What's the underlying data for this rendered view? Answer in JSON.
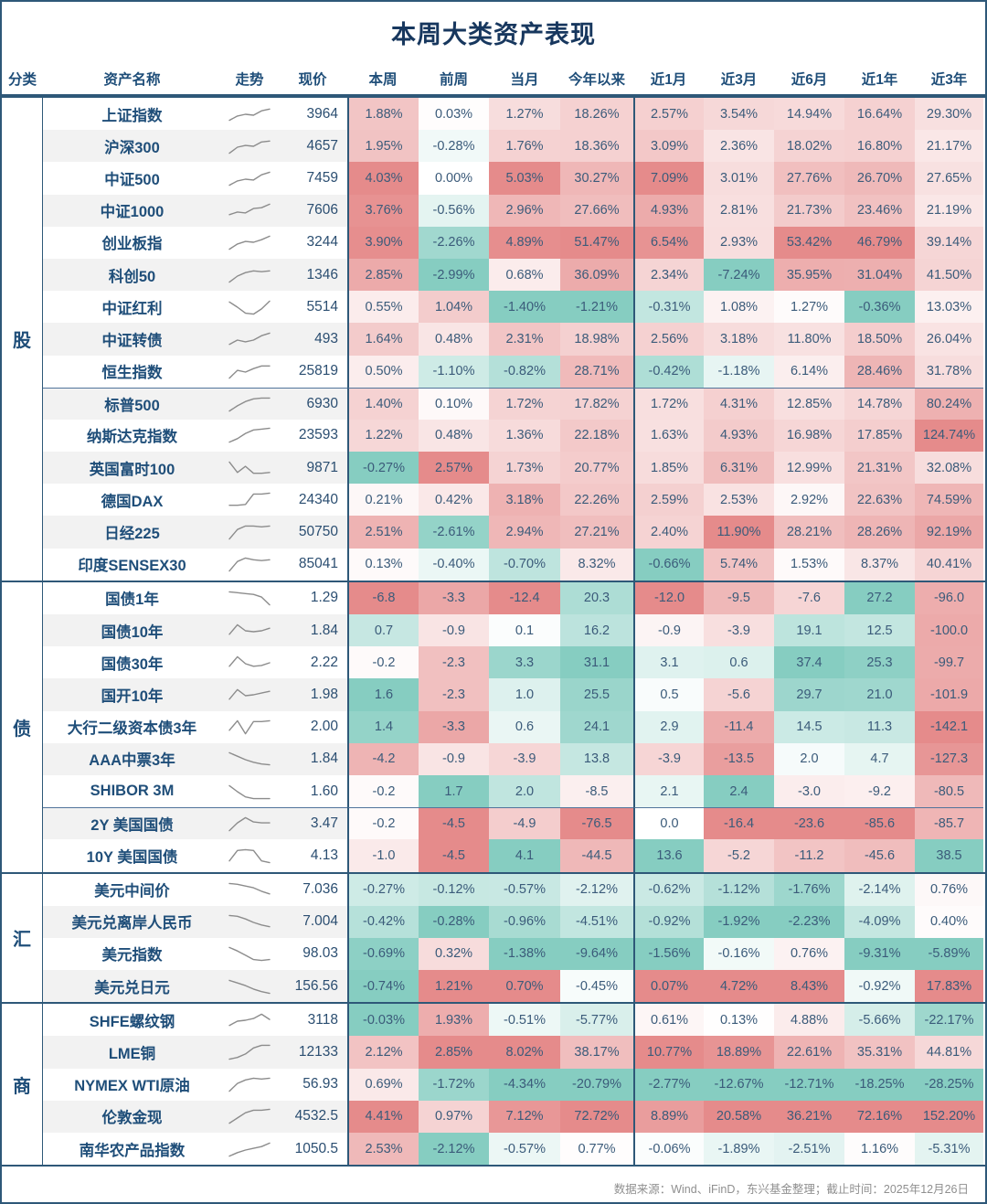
{
  "title": "本周大类资产表现",
  "source_note": "数据来源：Wind、iFinD，东兴基金整理；截止时间：2025年12月26日",
  "palette": {
    "up_red": "#E58B8B",
    "down_teal": "#86CDC1",
    "header_text": "#1F4E79",
    "value_text": "#3B5B7A",
    "border_dark": "#2E5878",
    "border_sub": "#51749B",
    "stripe": "#F2F2F2",
    "spark": "#8C8C8C",
    "title_text": "#17375E",
    "footer_text": "#8F8F8F"
  },
  "chart_data": {
    "type": "heatmap",
    "columns": [
      "分类",
      "资产名称",
      "走势",
      "现价",
      "本周",
      "前周",
      "当月",
      "今年以来",
      "近1月",
      "近3月",
      "近6月",
      "近1年",
      "近3年"
    ],
    "sections": [
      {
        "category": "股",
        "unit": "%",
        "invert_colors": false,
        "break_before": [
          9
        ],
        "rows": [
          {
            "name": "上证指数",
            "price": "3964",
            "spark": [
              1.5,
              4,
              5,
              4.5,
              7,
              8
            ],
            "values": [
              1.88,
              0.03,
              1.27,
              18.26,
              2.57,
              3.54,
              14.94,
              16.64,
              29.3
            ]
          },
          {
            "name": "沪深300",
            "price": "4657",
            "spark": [
              1,
              4.5,
              5.5,
              5,
              7.5,
              8
            ],
            "values": [
              1.95,
              -0.28,
              1.76,
              18.36,
              3.09,
              2.36,
              18.02,
              16.8,
              21.17
            ]
          },
          {
            "name": "中证500",
            "price": "7459",
            "spark": [
              1,
              3.5,
              4.5,
              4,
              7,
              8.5
            ],
            "values": [
              4.03,
              0.0,
              5.03,
              30.27,
              7.09,
              3.01,
              27.76,
              26.7,
              27.65
            ]
          },
          {
            "name": "中证1000",
            "price": "7606",
            "spark": [
              2.5,
              4,
              3.5,
              6,
              6.5,
              8.5
            ],
            "values": [
              3.76,
              -0.56,
              2.96,
              27.66,
              4.93,
              2.81,
              21.73,
              23.46,
              21.19
            ]
          },
          {
            "name": "创业板指",
            "price": "3244",
            "spark": [
              1,
              4,
              5.5,
              5,
              6.5,
              8.5
            ],
            "values": [
              3.9,
              -2.26,
              4.89,
              51.47,
              6.54,
              2.93,
              53.42,
              46.79,
              39.14
            ]
          },
          {
            "name": "科创50",
            "price": "1346",
            "spark": [
              1,
              4.5,
              6.5,
              7.5,
              7,
              7.5
            ],
            "values": [
              2.85,
              -2.99,
              0.68,
              36.09,
              2.34,
              -7.24,
              35.95,
              31.04,
              41.5
            ]
          },
          {
            "name": "中证红利",
            "price": "5514",
            "spark": [
              8,
              5,
              1.5,
              1,
              4,
              8.5
            ],
            "values": [
              0.55,
              1.04,
              -1.4,
              -1.21,
              -0.31,
              1.08,
              1.27,
              -0.36,
              13.03
            ]
          },
          {
            "name": "中证转债",
            "price": "493",
            "spark": [
              2,
              4.5,
              3.5,
              4.5,
              7,
              8.5
            ],
            "values": [
              1.64,
              0.48,
              2.31,
              18.98,
              2.56,
              3.18,
              11.8,
              18.5,
              26.04
            ]
          },
          {
            "name": "恒生指数",
            "price": "25819",
            "spark": [
              1,
              5.5,
              4.5,
              6.5,
              8,
              8
            ],
            "values": [
              0.5,
              -1.1,
              -0.82,
              28.71,
              -0.42,
              -1.18,
              6.14,
              28.46,
              31.78
            ]
          },
          {
            "name": "标普500",
            "price": "6930",
            "spark": [
              1,
              4,
              6.5,
              8,
              8.5,
              8.5
            ],
            "values": [
              1.4,
              0.1,
              1.72,
              17.82,
              1.72,
              4.31,
              12.85,
              14.78,
              80.24
            ]
          },
          {
            "name": "纳斯达克指数",
            "price": "23593",
            "spark": [
              1,
              3,
              6,
              8,
              8.5,
              9
            ],
            "values": [
              1.22,
              0.48,
              1.36,
              22.18,
              1.63,
              4.93,
              16.98,
              17.85,
              124.74
            ]
          },
          {
            "name": "英国富时100",
            "price": "9871",
            "spark": [
              8.5,
              2.5,
              6,
              2,
              2,
              2.5
            ],
            "values": [
              -0.27,
              2.57,
              1.73,
              20.77,
              1.85,
              6.31,
              12.99,
              21.31,
              32.08
            ]
          },
          {
            "name": "德国DAX",
            "price": "24340",
            "spark": [
              2,
              2,
              2.5,
              8.5,
              8.5,
              9
            ],
            "values": [
              0.21,
              0.42,
              3.18,
              22.26,
              2.59,
              2.53,
              2.92,
              22.63,
              74.59
            ]
          },
          {
            "name": "日经225",
            "price": "50750",
            "spark": [
              1,
              6.5,
              8.5,
              8.5,
              8,
              8.5
            ],
            "values": [
              2.51,
              -2.61,
              2.94,
              27.21,
              2.4,
              11.9,
              28.21,
              28.26,
              92.19
            ]
          },
          {
            "name": "印度SENSEX30",
            "price": "85041",
            "spark": [
              1,
              6.5,
              8.5,
              7.5,
              7,
              7.5
            ],
            "values": [
              0.13,
              -0.4,
              -0.7,
              8.32,
              -0.66,
              5.74,
              1.53,
              8.37,
              40.41
            ]
          }
        ]
      },
      {
        "category": "债",
        "unit": "bp",
        "invert_colors": true,
        "break_before": [
          7
        ],
        "rows": [
          {
            "name": "国债1年",
            "price": "1.29",
            "spark": [
              8.5,
              8,
              7.5,
              7,
              5.5,
              1
            ],
            "values": [
              -6.8,
              -3.3,
              -12.4,
              20.3,
              -12.0,
              -9.5,
              -7.6,
              27.2,
              -96.0
            ]
          },
          {
            "name": "国债10年",
            "price": "1.84",
            "spark": [
              3,
              8.5,
              5,
              4.5,
              5,
              6.5
            ],
            "values": [
              0.7,
              -0.9,
              0.1,
              16.2,
              -0.9,
              -3.9,
              19.1,
              12.5,
              -100.0
            ]
          },
          {
            "name": "国债30年",
            "price": "2.22",
            "spark": [
              3,
              8.5,
              4.5,
              3,
              3.5,
              5
            ],
            "values": [
              -0.2,
              -2.3,
              3.3,
              31.1,
              3.1,
              0.6,
              37.4,
              25.3,
              -99.7
            ]
          },
          {
            "name": "国开10年",
            "price": "1.98",
            "spark": [
              2.5,
              8,
              4.5,
              5,
              6,
              7
            ],
            "values": [
              1.6,
              -2.3,
              1.0,
              25.5,
              0.5,
              -5.6,
              29.7,
              21.0,
              -101.9
            ]
          },
          {
            "name": "大行二级资本债3年",
            "price": "2.00",
            "spark": [
              3,
              8.5,
              1,
              8,
              8,
              8.5
            ],
            "values": [
              1.4,
              -3.3,
              0.6,
              24.1,
              2.9,
              -11.4,
              14.5,
              11.3,
              -142.1
            ]
          },
          {
            "name": "AAA中票3年",
            "price": "1.84",
            "spark": [
              8.5,
              6.5,
              4.5,
              3,
              2,
              1.5
            ],
            "values": [
              -4.2,
              -0.9,
              -3.9,
              13.8,
              -3.9,
              -13.5,
              2.0,
              4.7,
              -127.3
            ]
          },
          {
            "name": "SHIBOR 3M",
            "price": "1.60",
            "spark": [
              8.5,
              5,
              2,
              1,
              1,
              1
            ],
            "values": [
              -0.2,
              1.7,
              2.0,
              -8.5,
              2.1,
              2.4,
              -3.0,
              -9.2,
              -80.5
            ]
          },
          {
            "name": "2Y 美国国债",
            "price": "3.47",
            "spark": [
              1,
              5.5,
              8.5,
              6,
              5.5,
              5.5
            ],
            "values": [
              -0.2,
              -4.5,
              -4.9,
              -76.5,
              0.0,
              -16.4,
              -23.6,
              -85.6,
              -85.7
            ]
          },
          {
            "name": "10Y 美国国债",
            "price": "4.13",
            "spark": [
              2,
              8,
              8.5,
              8,
              2,
              1
            ],
            "values": [
              -1.0,
              -4.5,
              4.1,
              -44.5,
              13.6,
              -5.2,
              -11.2,
              -45.6,
              38.5
            ]
          }
        ]
      },
      {
        "category": "汇",
        "unit": "%",
        "invert_colors": false,
        "break_before": [],
        "rows": [
          {
            "name": "美元中间价",
            "price": "7.036",
            "spark": [
              8.5,
              8,
              7,
              6,
              4,
              2.5
            ],
            "values": [
              -0.27,
              -0.12,
              -0.57,
              -2.12,
              -0.62,
              -1.12,
              -1.76,
              -2.14,
              0.76
            ]
          },
          {
            "name": "美元兑离岸人民币",
            "price": "7.004",
            "spark": [
              8.5,
              8,
              6.5,
              4.5,
              3,
              2
            ],
            "values": [
              -0.42,
              -0.28,
              -0.96,
              -4.51,
              -0.92,
              -1.92,
              -2.23,
              -4.09,
              0.4
            ]
          },
          {
            "name": "美元指数",
            "price": "98.03",
            "spark": [
              8.5,
              6.5,
              4,
              1.5,
              1,
              1.5
            ],
            "values": [
              -0.69,
              0.32,
              -1.38,
              -9.64,
              -1.56,
              -0.16,
              0.76,
              -9.31,
              -5.89
            ]
          },
          {
            "name": "美元兑日元",
            "price": "156.56",
            "spark": [
              8.5,
              7,
              5.5,
              3.5,
              2,
              1
            ],
            "values": [
              -0.74,
              1.21,
              0.7,
              -0.45,
              0.07,
              4.72,
              8.43,
              -0.92,
              17.83
            ]
          }
        ]
      },
      {
        "category": "商",
        "unit": "%",
        "invert_colors": false,
        "break_before": [],
        "rows": [
          {
            "name": "SHFE螺纹钢",
            "price": "3118",
            "spark": [
              2,
              4.5,
              5,
              6,
              8.5,
              5.5
            ],
            "values": [
              -0.03,
              1.93,
              -0.51,
              -5.77,
              0.61,
              0.13,
              4.88,
              -5.66,
              -22.17
            ]
          },
          {
            "name": "LME铜",
            "price": "12133",
            "spark": [
              1,
              2,
              4,
              7.5,
              9,
              9
            ],
            "values": [
              2.12,
              2.85,
              8.02,
              38.17,
              10.77,
              18.89,
              22.61,
              35.31,
              44.81
            ]
          },
          {
            "name": "NYMEX WTI原油",
            "price": "56.93",
            "spark": [
              1,
              5.5,
              7.5,
              8.5,
              8,
              8.5
            ],
            "values": [
              0.69,
              -1.72,
              -4.34,
              -20.79,
              -2.77,
              -12.67,
              -12.71,
              -18.25,
              -28.25
            ]
          },
          {
            "name": "伦敦金现",
            "price": "4532.5",
            "spark": [
              1,
              4,
              7,
              8.5,
              8.5,
              9
            ],
            "values": [
              4.41,
              0.97,
              7.12,
              72.72,
              8.89,
              20.58,
              36.21,
              72.16,
              152.2
            ]
          },
          {
            "name": "南华农产品指数",
            "price": "1050.5",
            "spark": [
              1,
              3,
              4.5,
              5.5,
              6.5,
              8.5
            ],
            "values": [
              2.53,
              -2.12,
              -0.57,
              0.77,
              -0.06,
              -1.89,
              -2.51,
              1.16,
              -5.31
            ]
          }
        ]
      }
    ]
  }
}
